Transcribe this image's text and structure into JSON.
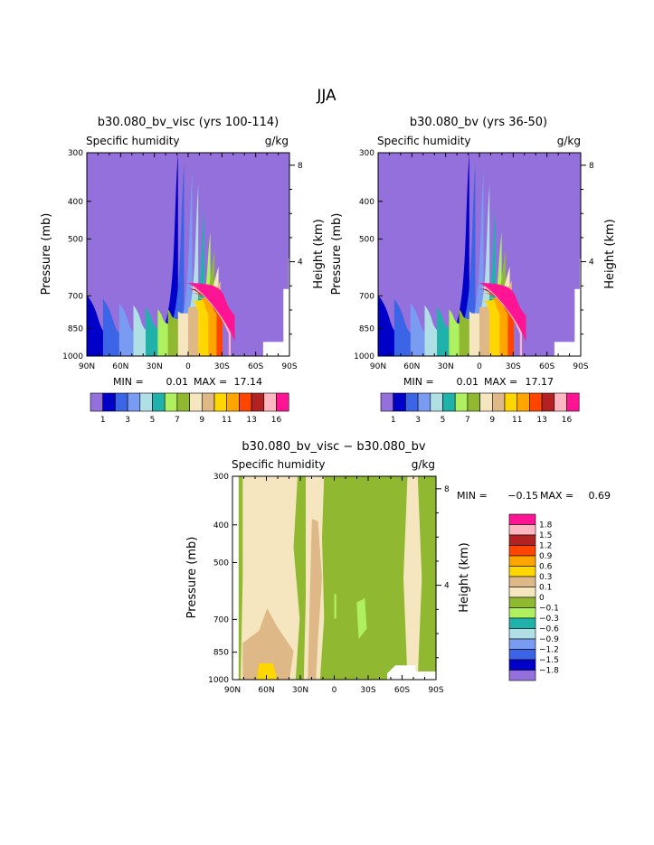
{
  "figure": {
    "title": "JJA"
  },
  "chart_data": [
    {
      "type": "heatmap",
      "title": "b30.080_bv_visc (yrs 100-114)",
      "left_label": "Specific humidity",
      "right_label": "g/kg",
      "ylabel": "Pressure (mb)",
      "ylabel_right": "Height (km)",
      "x_ticks": [
        "90N",
        "60N",
        "30N",
        "0",
        "30S",
        "60S",
        "90S"
      ],
      "y_ticks": [
        "300",
        "400",
        "500",
        "700",
        "850",
        "1000"
      ],
      "y_right_ticks": [
        "8",
        "4"
      ],
      "stats": {
        "min_label": "MIN =",
        "min": "0.01",
        "max_label": "MAX =",
        "max": "17.14"
      },
      "levels": [
        "1",
        "2",
        "3",
        "4",
        "5",
        "6",
        "7",
        "8",
        "9",
        "10",
        "11",
        "12",
        "13",
        "14",
        "16"
      ],
      "level_labels": [
        "1",
        "3",
        "5",
        "7",
        "9",
        "11",
        "13",
        "16"
      ],
      "colors": [
        "#9370db",
        "#0000c8",
        "#3c64e6",
        "#7a9bf2",
        "#b0e0e6",
        "#20b2aa",
        "#aef060",
        "#90b830",
        "#f5e6c0",
        "#deb887",
        "#ffd700",
        "#ffa500",
        "#ff4500",
        "#b22222",
        "#ffb6c1",
        "#ff1493"
      ]
    },
    {
      "type": "heatmap",
      "title": "b30.080_bv (yrs 36-50)",
      "left_label": "Specific humidity",
      "right_label": "g/kg",
      "ylabel": "Pressure (mb)",
      "ylabel_right": "Height (km)",
      "x_ticks": [
        "90N",
        "60N",
        "30N",
        "0",
        "30S",
        "60S",
        "90S"
      ],
      "y_ticks": [
        "300",
        "400",
        "500",
        "700",
        "850",
        "1000"
      ],
      "y_right_ticks": [
        "8",
        "4"
      ],
      "stats": {
        "min_label": "MIN =",
        "min": "0.01",
        "max_label": "MAX =",
        "max": "17.17"
      },
      "levels": [
        "1",
        "2",
        "3",
        "4",
        "5",
        "6",
        "7",
        "8",
        "9",
        "10",
        "11",
        "12",
        "13",
        "14",
        "16"
      ],
      "level_labels": [
        "1",
        "3",
        "5",
        "7",
        "9",
        "11",
        "13",
        "16"
      ],
      "colors": [
        "#9370db",
        "#0000c8",
        "#3c64e6",
        "#7a9bf2",
        "#b0e0e6",
        "#20b2aa",
        "#aef060",
        "#90b830",
        "#f5e6c0",
        "#deb887",
        "#ffd700",
        "#ffa500",
        "#ff4500",
        "#b22222",
        "#ffb6c1",
        "#ff1493"
      ]
    },
    {
      "type": "heatmap",
      "title": "b30.080_bv_visc − b30.080_bv",
      "left_label": "Specific humidity",
      "right_label": "g/kg",
      "ylabel": "Pressure (mb)",
      "ylabel_right": "Height (km)",
      "x_ticks": [
        "90N",
        "60N",
        "30N",
        "0",
        "30S",
        "60S",
        "90S"
      ],
      "y_ticks": [
        "300",
        "400",
        "500",
        "700",
        "850",
        "1000"
      ],
      "y_right_ticks": [
        "8",
        "4"
      ],
      "stats": {
        "min_label": "MIN =",
        "min": "−0.15",
        "max_label": "MAX =",
        "max": "0.69"
      },
      "levels": [
        "1.8",
        "1.5",
        "1.2",
        "0.9",
        "0.6",
        "0.3",
        "0.1",
        "0",
        "−0.1",
        "−0.3",
        "−0.6",
        "−0.9",
        "−1.2",
        "−1.5",
        "−1.8"
      ],
      "colors": [
        "#ff1493",
        "#ffb6c1",
        "#b22222",
        "#ff4500",
        "#ffa500",
        "#ffd700",
        "#deb887",
        "#f5e6c0",
        "#90b830",
        "#aef060",
        "#20b2aa",
        "#b0e0e6",
        "#7a9bf2",
        "#3c64e6",
        "#0000c8",
        "#9370db"
      ]
    }
  ]
}
